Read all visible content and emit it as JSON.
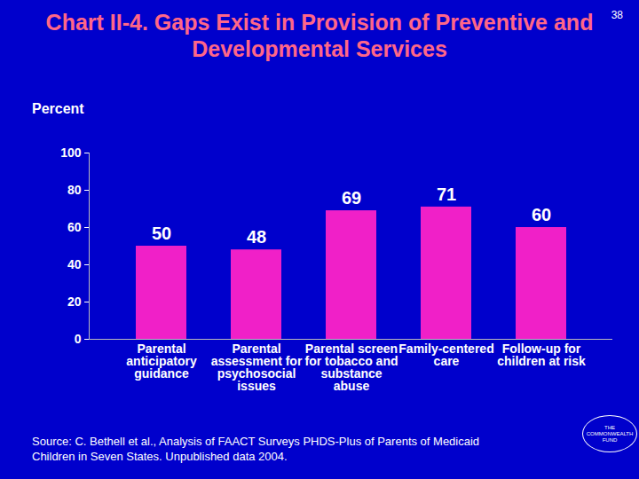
{
  "chart_data": {
    "type": "bar",
    "title": "Chart II-4. Gaps Exist in Provision of Preventive and Developmental Services",
    "page_number": "38",
    "y_label": "Percent",
    "categories": [
      "Parental\nanticipatory\nguidance",
      "Parental\nassessment for\npsychosocial\nissues",
      "Parental screen\nfor tobacco and\nsubstance\nabuse",
      "Family-centered\ncare",
      "Follow-up for\nchildren at risk"
    ],
    "values": [
      50,
      48,
      69,
      71,
      60
    ],
    "color": "#f020c8",
    "ylim": [
      0,
      100
    ],
    "yticks": [
      0,
      20,
      40,
      60,
      80,
      100
    ],
    "data_labels": true,
    "grid": false,
    "source": "Source: C. Bethell et al., Analysis of FAACT Surveys PHDS-Plus of Parents of Medicaid Children in Seven States. Unpublished data 2004.",
    "logo": "THE COMMONWEALTH FUND"
  }
}
